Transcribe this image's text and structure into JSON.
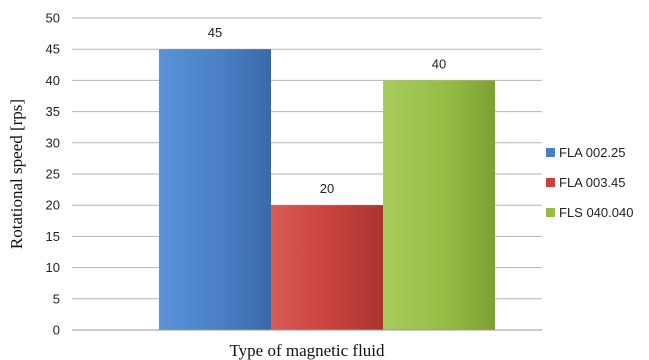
{
  "chart_data": {
    "type": "bar",
    "title": "",
    "xlabel": "Type of magnetic fluid",
    "ylabel": "Rotational speed [rps]",
    "ylim": [
      0,
      50
    ],
    "yticks": [
      0,
      5,
      10,
      15,
      20,
      25,
      30,
      35,
      40,
      45,
      50
    ],
    "grid": true,
    "legend_position": "right",
    "series": [
      {
        "name": "FLA 002.25",
        "values": [
          45
        ],
        "color": "#4a7fc6"
      },
      {
        "name": "FLA 003.45",
        "values": [
          20
        ],
        "color": "#c9413c"
      },
      {
        "name": "FLS 040.040",
        "values": [
          40
        ],
        "color": "#96bd45"
      }
    ],
    "data_labels": [
      "45",
      "20",
      "40"
    ]
  }
}
